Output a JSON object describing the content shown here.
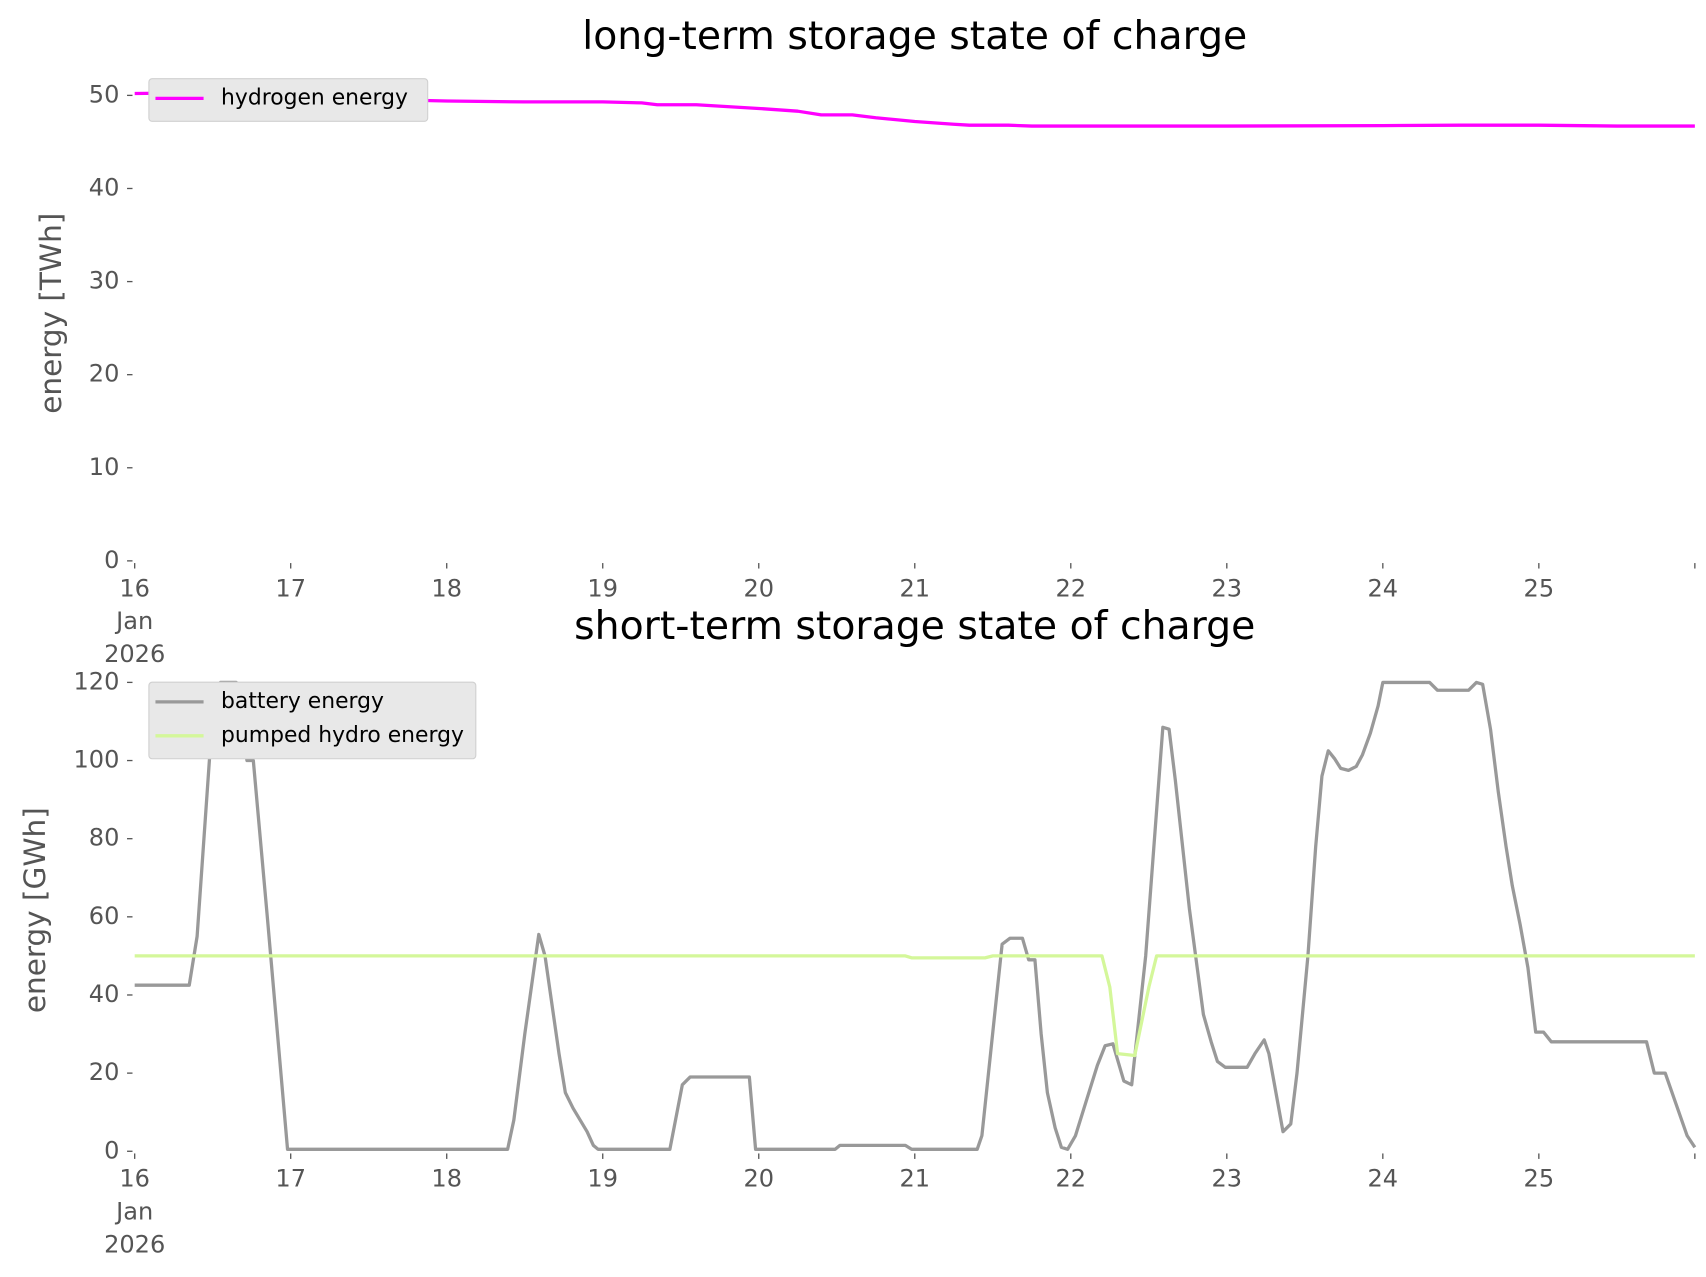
{
  "chart_data": [
    {
      "type": "line",
      "title": "long-term storage state of charge",
      "ylabel": "energy [TWh]",
      "xlim": [
        16,
        26
      ],
      "ylim": [
        0,
        53.2
      ],
      "xticks": [
        {
          "value": 16,
          "label": "16\nJan\n2026"
        },
        17,
        18,
        19,
        20,
        21,
        22,
        23,
        24,
        25,
        {
          "value": 26,
          "label": ""
        }
      ],
      "yticks": [
        0,
        10,
        20,
        30,
        40,
        50
      ],
      "legend": "upper left",
      "series": [
        {
          "name": "hydrogen energy",
          "color": "#ff00ff",
          "x": [
            16,
            16.5,
            17,
            17.5,
            18,
            18.5,
            19,
            19.25,
            19.35,
            19.6,
            20,
            20.25,
            20.4,
            20.6,
            20.75,
            21,
            21.25,
            21.35,
            21.6,
            21.75,
            22,
            23,
            24,
            24.5,
            25,
            25.5,
            26
          ],
          "values": [
            50.2,
            50.3,
            49.9,
            49.6,
            49.4,
            49.3,
            49.3,
            49.2,
            49.0,
            49.0,
            48.6,
            48.3,
            47.9,
            47.9,
            47.6,
            47.2,
            46.9,
            46.8,
            46.8,
            46.7,
            46.7,
            46.7,
            46.75,
            46.8,
            46.8,
            46.7,
            46.7
          ]
        }
      ]
    },
    {
      "type": "line",
      "title": "short-term storage state of charge",
      "ylabel": "energy [GWh]",
      "xlim": [
        16,
        26
      ],
      "ylim": [
        0,
        123.4
      ],
      "xticks": [
        {
          "value": 16,
          "label": "16\nJan\n2026"
        },
        17,
        18,
        19,
        20,
        21,
        22,
        23,
        24,
        25,
        {
          "value": 26,
          "label": ""
        }
      ],
      "yticks": [
        0,
        20,
        40,
        60,
        80,
        100,
        120
      ],
      "legend": "upper left",
      "series": [
        {
          "name": "battery energy",
          "color": "#999999",
          "x": [
            16,
            16.35,
            16.4,
            16.51,
            16.55,
            16.65,
            16.72,
            16.76,
            16.85,
            16.98,
            18.39,
            18.43,
            18.5,
            18.59,
            18.63,
            18.72,
            18.76,
            18.81,
            18.9,
            18.94,
            18.97,
            19.43,
            19.51,
            19.56,
            19.94,
            19.98,
            20.49,
            20.52,
            20.94,
            20.98,
            21.4,
            21.43,
            21.52,
            21.56,
            21.61,
            21.69,
            21.73,
            21.77,
            21.81,
            21.85,
            21.9,
            21.94,
            21.98,
            22.03,
            22.1,
            22.17,
            22.22,
            22.27,
            22.34,
            22.39,
            22.48,
            22.59,
            22.63,
            22.67,
            22.76,
            22.81,
            22.85,
            22.9,
            22.94,
            22.99,
            23.13,
            23.18,
            23.24,
            23.27,
            23.36,
            23.41,
            23.45,
            23.52,
            23.57,
            23.61,
            23.65,
            23.69,
            23.73,
            23.78,
            23.83,
            23.87,
            23.92,
            23.97,
            24.0,
            24.3,
            24.35,
            24.55,
            24.6,
            24.64,
            24.69,
            24.74,
            24.79,
            24.83,
            24.88,
            24.93,
            24.98,
            25.03,
            25.08,
            25.69,
            25.74,
            25.81,
            25.88,
            25.95,
            26.0
          ],
          "values": [
            42.5,
            42.5,
            55,
            118,
            120,
            120,
            100,
            100,
            60,
            0.5,
            0.5,
            8,
            30,
            55.5,
            50,
            25,
            15,
            11,
            5,
            1.5,
            0.5,
            0.5,
            17,
            19,
            19,
            0.5,
            0.5,
            1.5,
            1.5,
            0.5,
            0.5,
            4,
            38,
            53,
            54.5,
            54.5,
            49,
            49,
            30,
            15,
            6,
            1,
            0.5,
            4,
            13,
            22,
            27,
            27.5,
            18,
            17,
            50,
            108.5,
            108,
            95,
            62,
            47,
            35,
            28,
            23,
            21.5,
            21.5,
            25,
            28.5,
            25,
            5,
            7,
            20,
            50,
            78,
            96,
            102.5,
            100.5,
            98,
            97.5,
            98.5,
            101.5,
            107,
            114,
            120,
            120,
            118,
            118,
            120,
            119.5,
            108,
            92,
            78,
            68,
            58,
            47,
            30.5,
            30.5,
            28,
            28,
            20,
            20,
            12,
            4,
            1
          ]
        },
        {
          "name": "pumped hydro energy",
          "color": "#d4f79a",
          "x": [
            16,
            20.94,
            20.98,
            21.45,
            21.5,
            22.2,
            22.25,
            22.3,
            22.41,
            22.5,
            22.55,
            26
          ],
          "values": [
            50,
            50,
            49.5,
            49.5,
            50,
            50,
            42,
            25,
            24.5,
            42,
            50,
            50
          ]
        }
      ]
    }
  ]
}
